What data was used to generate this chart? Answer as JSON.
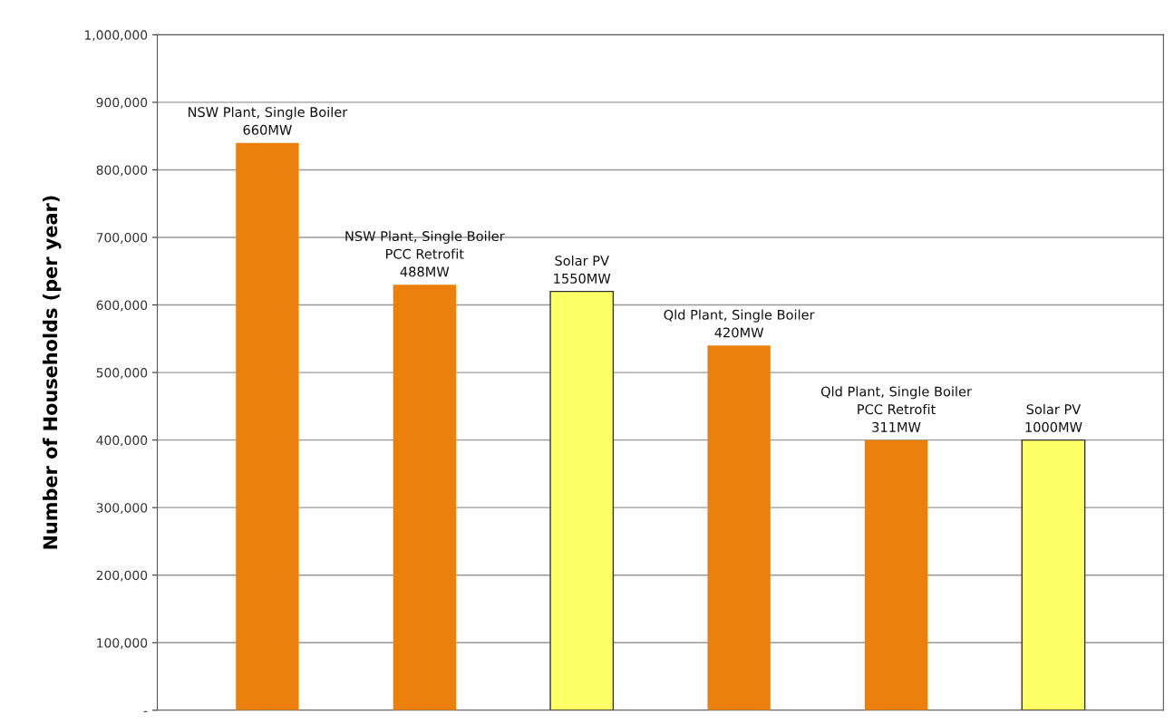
{
  "chart_data": {
    "type": "bar",
    "ylabel": "Number of Households (per year)",
    "categories": [
      "NSW Plant, Single Boiler\n660MW",
      "NSW Plant, Single Boiler\nPCC Retrofit\n488MW",
      "Solar PV\n1550MW",
      "Qld Plant, Single Boiler\n420MW",
      "Qld Plant, Single Boiler\nPCC Retrofit\n311MW",
      "Solar PV\n1000MW"
    ],
    "values": [
      840000,
      630000,
      620000,
      540000,
      400000,
      400000
    ],
    "colors": [
      "#ec800c",
      "#ec800c",
      "#ffff66",
      "#ec800c",
      "#ec800c",
      "#ffff66"
    ],
    "ylim": [
      0,
      1000000
    ],
    "yticks": [
      {
        "value": 0,
        "label": "-"
      },
      {
        "value": 100000,
        "label": "100,000"
      },
      {
        "value": 200000,
        "label": "200,000"
      },
      {
        "value": 300000,
        "label": "300,000"
      },
      {
        "value": 400000,
        "label": "400,000"
      },
      {
        "value": 500000,
        "label": "500,000"
      },
      {
        "value": 600000,
        "label": "600,000"
      },
      {
        "value": 700000,
        "label": "700,000"
      },
      {
        "value": 800000,
        "label": "800,000"
      },
      {
        "value": 900000,
        "label": "900,000"
      },
      {
        "value": 1000000,
        "label": "1,000,000"
      }
    ],
    "grid": "y",
    "tick_labels": "y"
  }
}
